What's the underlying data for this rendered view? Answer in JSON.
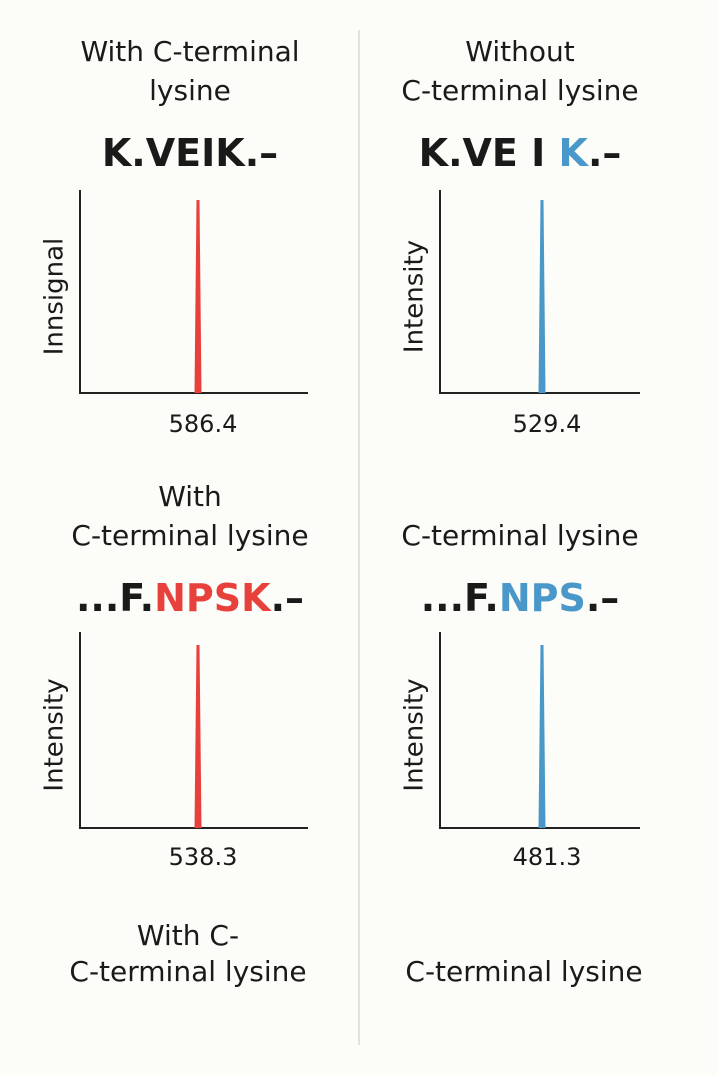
{
  "panels": [
    {
      "heading": [
        "With C-terminal",
        "lysine"
      ],
      "peptide": [
        {
          "text": "K.VEIK.–",
          "color": "#1a1a1a"
        }
      ],
      "y_label": "Innsignal",
      "peak_label": "586.4",
      "peak_color": "#e8413c"
    },
    {
      "heading": [
        "Without",
        "C-terminal lysine"
      ],
      "peptide": [
        {
          "text": "K.VE I ",
          "color": "#1a1a1a"
        },
        {
          "text": "K",
          "color": "#4a98c9"
        },
        {
          "text": ".–",
          "color": "#1a1a1a"
        }
      ],
      "y_label": "Intensity",
      "peak_label": "529.4",
      "peak_color": "#4a98c9"
    },
    {
      "heading": [
        "With",
        "C-terminal lysine"
      ],
      "peptide": [
        {
          "text": "...F.",
          "color": "#1a1a1a"
        },
        {
          "text": "NPSK",
          "color": "#e8413c"
        },
        {
          "text": ".–",
          "color": "#1a1a1a"
        }
      ],
      "y_label": "Intensity",
      "peak_label": "538.3",
      "peak_color": "#e8413c"
    },
    {
      "heading": [
        "C-terminal lysine"
      ],
      "peptide": [
        {
          "text": "...F.",
          "color": "#1a1a1a"
        },
        {
          "text": "NPS",
          "color": "#4a98c9"
        },
        {
          "text": ".–",
          "color": "#1a1a1a"
        }
      ],
      "y_label": "Intensity",
      "peak_label": "481.3",
      "peak_color": "#4a98c9"
    }
  ],
  "footer": {
    "left": [
      "With C-",
      "C-terminal lysine"
    ],
    "right": [
      "C-terminal lysine"
    ]
  }
}
